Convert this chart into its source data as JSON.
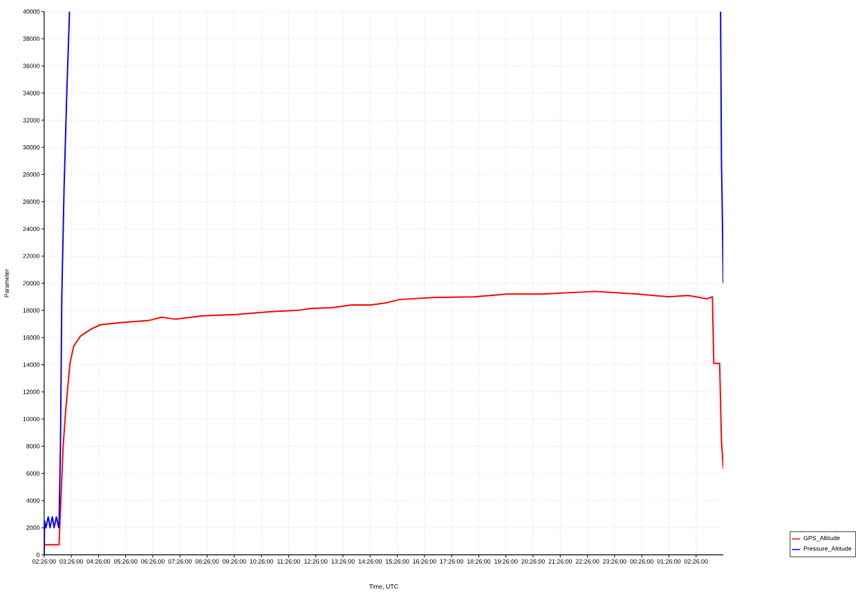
{
  "chart_data": {
    "type": "line",
    "xlabel": "Time, UTC",
    "ylabel": "Parameter",
    "xlim": [
      "2000-01-01T02:26",
      "2000-01-02T03:26"
    ],
    "ylim": [
      0,
      40000
    ],
    "xticks": [
      {
        "value": "2000-01-01T02:26",
        "label": "02:26:00"
      },
      {
        "value": "2000-01-01T03:26",
        "label": "03:26:00"
      },
      {
        "value": "2000-01-01T04:26",
        "label": "04:26:00"
      },
      {
        "value": "2000-01-01T05:26",
        "label": "05:26:00"
      },
      {
        "value": "2000-01-01T06:26",
        "label": "06:26:00"
      },
      {
        "value": "2000-01-01T07:26",
        "label": "07:26:00"
      },
      {
        "value": "2000-01-01T08:26",
        "label": "08:26:00"
      },
      {
        "value": "2000-01-01T09:26",
        "label": "09:26:00"
      },
      {
        "value": "2000-01-01T10:26",
        "label": "10:26:00"
      },
      {
        "value": "2000-01-01T11:26",
        "label": "11:26:00"
      },
      {
        "value": "2000-01-01T12:26",
        "label": "12:26:00"
      },
      {
        "value": "2000-01-01T13:26",
        "label": "13:26:00"
      },
      {
        "value": "2000-01-01T14:26",
        "label": "14:26:00"
      },
      {
        "value": "2000-01-01T15:26",
        "label": "15:26:00"
      },
      {
        "value": "2000-01-01T16:26",
        "label": "16:26:00"
      },
      {
        "value": "2000-01-01T17:26",
        "label": "17:26:00"
      },
      {
        "value": "2000-01-01T18:26",
        "label": "18:26:00"
      },
      {
        "value": "2000-01-01T19:26",
        "label": "19:26:00"
      },
      {
        "value": "2000-01-01T20:26",
        "label": "20:26:00"
      },
      {
        "value": "2000-01-01T21:26",
        "label": "21:26:00"
      },
      {
        "value": "2000-01-01T22:26",
        "label": "22:26:00"
      },
      {
        "value": "2000-01-01T23:26",
        "label": "23:26:00"
      },
      {
        "value": "2000-01-02T00:26",
        "label": "00:26:00"
      },
      {
        "value": "2000-01-02T01:26",
        "label": "01:26:00"
      },
      {
        "value": "2000-01-02T02:26",
        "label": "02:26:00"
      }
    ],
    "yticks": [
      0,
      2000,
      4000,
      6000,
      8000,
      10000,
      12000,
      14000,
      16000,
      18000,
      20000,
      22000,
      24000,
      26000,
      28000,
      30000,
      32000,
      34000,
      36000,
      38000,
      40000
    ],
    "grid": true,
    "legend": "bottom right",
    "series": [
      {
        "name": "GPS_Altitude",
        "color": "#ff0000",
        "x": [
          "2000-01-01T02:26",
          "2000-01-01T02:59",
          "2000-01-01T03:01",
          "2000-01-01T03:08",
          "2000-01-01T03:14",
          "2000-01-01T03:23",
          "2000-01-01T03:31",
          "2000-01-01T03:46",
          "2000-01-01T04:11",
          "2000-01-01T04:31",
          "2000-01-01T05:16",
          "2000-01-01T06:16",
          "2000-01-01T06:46",
          "2000-01-01T07:16",
          "2000-01-01T08:16",
          "2000-01-01T09:31",
          "2000-01-01T10:46",
          "2000-01-01T11:46",
          "2000-01-01T12:16",
          "2000-01-01T13:01",
          "2000-01-01T13:46",
          "2000-01-01T14:28",
          "2000-01-01T15:01",
          "2000-01-01T15:31",
          "2000-01-01T16:46",
          "2000-01-01T18:16",
          "2000-01-01T19:28",
          "2000-01-01T20:46",
          "2000-01-01T22:43",
          "2000-01-02T00:17",
          "2000-01-02T01:26",
          "2000-01-02T02:08",
          "2000-01-02T02:50",
          "2000-01-02T03:02",
          "2000-01-02T03:05",
          "2000-01-02T03:18",
          "2000-01-02T03:22",
          "2000-01-02T03:26"
        ],
        "values": [
          750,
          750,
          2500,
          8000,
          10800,
          14100,
          15350,
          16100,
          16650,
          16950,
          17100,
          17250,
          17500,
          17350,
          17600,
          17700,
          17900,
          18000,
          18150,
          18200,
          18400,
          18400,
          18550,
          18800,
          18950,
          19000,
          19200,
          19200,
          19400,
          19200,
          19000,
          19100,
          18850,
          19000,
          14100,
          14100,
          8350,
          6350
        ]
      },
      {
        "name": "Pressure_Altitude",
        "color": "#0000ff",
        "x": [
          "2000-01-01T02:26",
          "2000-01-01T02:27",
          "2000-01-01T02:30",
          "2000-01-01T02:35",
          "2000-01-01T02:39",
          "2000-01-01T02:44",
          "2000-01-01T02:48",
          "2000-01-01T02:53",
          "2000-01-01T02:58",
          "2000-01-01T02:59",
          "2000-01-01T03:02",
          "2000-01-01T03:05",
          "2000-01-01T03:10",
          "2000-01-01T03:16",
          "2000-01-01T03:22",
          "2000-01-01T03:30",
          "2000-01-02T03:20",
          "2000-01-02T03:22",
          "2000-01-02T03:24",
          "2000-01-02T03:26"
        ],
        "values": [
          0,
          2500,
          2000,
          2800,
          2000,
          2800,
          2000,
          2800,
          2000,
          2500,
          8000,
          19000,
          27000,
          34000,
          40000,
          null,
          40000,
          28900,
          24850,
          20000
        ]
      }
    ]
  }
}
